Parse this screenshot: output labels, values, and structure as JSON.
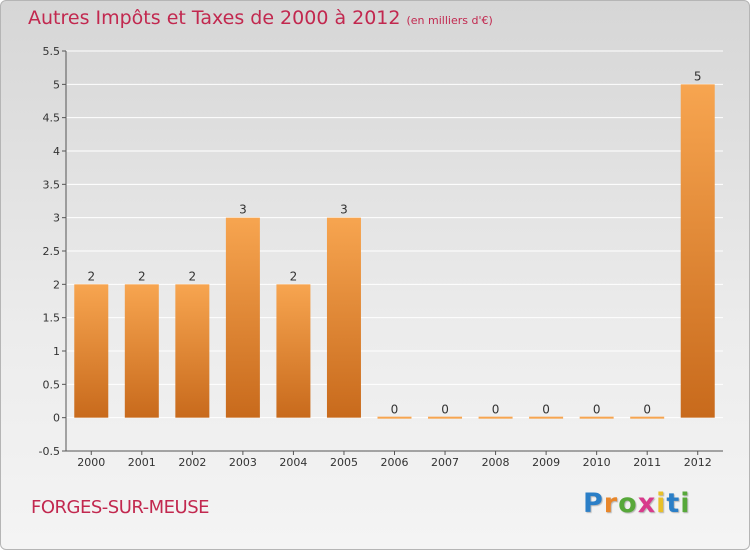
{
  "header": {
    "title": "Autres Impôts et Taxes de 2000 à 2012",
    "subtitle": "(en milliers d'€)"
  },
  "footer": {
    "commune": "FORGES-SUR-MEUSE",
    "logo_letters": [
      "P",
      "r",
      "o",
      "x",
      "i",
      "t",
      "i"
    ],
    "logo_colors": [
      "#2b7fc7",
      "#e8862a",
      "#57a83a",
      "#d83a8c",
      "#e8c02a",
      "#2b7fc7",
      "#57a83a"
    ]
  },
  "colors": {
    "title": "#c2284f",
    "bar_top": "#f7a550",
    "bar_bottom": "#c86a1c",
    "grid": "#ffffff"
  },
  "chart_data": {
    "type": "bar",
    "categories": [
      "2000",
      "2001",
      "2002",
      "2003",
      "2004",
      "2005",
      "2006",
      "2007",
      "2008",
      "2009",
      "2010",
      "2011",
      "2012"
    ],
    "values": [
      2,
      2,
      2,
      3,
      2,
      3,
      0,
      0,
      0,
      0,
      0,
      0,
      5
    ],
    "data_labels": [
      "2",
      "2",
      "2",
      "3",
      "2",
      "3",
      "0",
      "0",
      "0",
      "0",
      "0",
      "0",
      "5"
    ],
    "y_ticks": [
      "-0.5",
      "0",
      "0.5",
      "1",
      "1.5",
      "2",
      "2.5",
      "3",
      "3.5",
      "4",
      "4.5",
      "5",
      "5.5"
    ],
    "ylim": [
      -0.5,
      5.5
    ],
    "grid": true
  }
}
